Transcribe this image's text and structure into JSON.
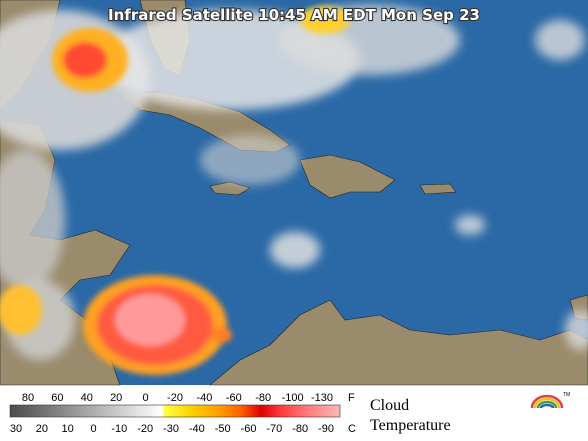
{
  "header": {
    "title": "Infrared Satellite 10:45 AM EDT Mon Sep 23"
  },
  "legend": {
    "fahrenheit": [
      "80",
      "60",
      "40",
      "20",
      "0",
      "-20",
      "-40",
      "-60",
      "-80",
      "-100",
      "-130"
    ],
    "fahrenheit_unit": "F",
    "celsius": [
      "30",
      "20",
      "10",
      "0",
      "-10",
      "-20",
      "-30",
      "-40",
      "-50",
      "-60",
      "-70",
      "-80",
      "-90"
    ],
    "celsius_unit": "C",
    "caption": [
      "Cloud",
      "Temperature"
    ],
    "logo_mark": "TM"
  }
}
